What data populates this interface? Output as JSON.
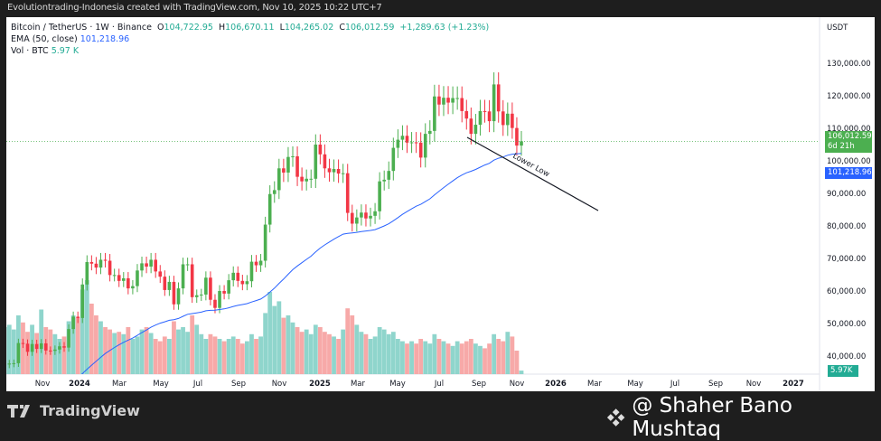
{
  "header": {
    "title": "Evolutiontrading-Indonesia created with TradingView.com, Nov 10, 2025 10:22 UTC+7"
  },
  "legend": {
    "symbol": "Bitcoin / TetherUS · 1W · Binance",
    "o_label": "O",
    "o": "104,722.95",
    "h_label": "H",
    "h": "106,670.11",
    "l_label": "L",
    "l": "104,265.02",
    "c_label": "C",
    "c": "106,012.59",
    "change": "+1,289.63 (+1.23%)",
    "ema_label": "EMA (50, close)",
    "ema": "101,218.96",
    "vol_label": "Vol · BTC",
    "vol": "5.97 K"
  },
  "price_axis": {
    "currency": "USDT",
    "labels": [
      "130,000.00",
      "120,000.00",
      "110,000.00",
      "100,000.00",
      "90,000.00",
      "80,000.00",
      "70,000.00",
      "60,000.00",
      "50,000.00",
      "40,000.00"
    ],
    "last_price": "106,012.59",
    "countdown": "6d 21h",
    "ema_tag": "101,218.96",
    "vol_tag": "5.97K"
  },
  "time_axis": {
    "labels": [
      "Nov",
      "2024",
      "Mar",
      "May",
      "Jul",
      "Sep",
      "Nov",
      "2025",
      "Mar",
      "May",
      "Jul",
      "Sep",
      "Nov",
      "2026",
      "Mar",
      "May",
      "Jul",
      "Sep",
      "Nov",
      "2027"
    ]
  },
  "annotation": {
    "text": "Lower Low"
  },
  "watermark": {
    "text": "@ Shaher Bano Mushtaq"
  },
  "logo": {
    "text": "TradingView"
  },
  "colors": {
    "up": "#4caf50",
    "down": "#f23645",
    "vol_up": "#8fd5cc",
    "vol_down": "#f7a9a8",
    "ema": "#2962ff"
  },
  "chart_data": {
    "type": "candlestick",
    "interval": "1W",
    "ylim": [
      37000,
      133000
    ],
    "closes": [
      27900,
      28300,
      30000,
      34500,
      34700,
      37000,
      37400,
      37700,
      37800,
      44000,
      43800,
      41300,
      43700,
      42200,
      43900,
      41700,
      41600,
      42000,
      43000,
      42600,
      48300,
      52100,
      51700,
      62000,
      68900,
      68400,
      67200,
      69600,
      69300,
      64900,
      64900,
      63100,
      63900,
      60800,
      61500,
      66300,
      68500,
      67500,
      69600,
      66000,
      64400,
      60300,
      62800,
      55900,
      60800,
      68200,
      68200,
      58100,
      58700,
      58900,
      64100,
      57300,
      54800,
      60000,
      59200,
      63300,
      65600,
      63100,
      62100,
      63000,
      69000,
      67900,
      69300,
      80400,
      89800,
      91000,
      97700,
      96400,
      101200,
      101400,
      95100,
      93700,
      94500,
      94500,
      105000,
      102000,
      97700,
      96500,
      97500,
      96100,
      96200,
      84000,
      80700,
      82600,
      84100,
      82300,
      83100,
      84500,
      93700,
      94200,
      96900,
      104000,
      106500,
      107700,
      105600,
      105700,
      105600,
      101000,
      108300,
      109200,
      119800,
      117300,
      119400,
      117900,
      119300,
      119300,
      115300,
      113000,
      108300,
      111100,
      115300,
      115200,
      112200,
      123500,
      115200,
      111000,
      114500,
      110100,
      104700,
      106000
    ],
    "volumes": [
      38,
      40,
      45,
      52,
      48,
      55,
      40,
      42,
      38,
      50,
      44,
      36,
      42,
      35,
      55,
      40,
      38,
      34,
      30,
      32,
      45,
      50,
      48,
      72,
      80,
      60,
      50,
      45,
      40,
      38,
      35,
      36,
      34,
      40,
      30,
      32,
      38,
      40,
      35,
      30,
      28,
      32,
      30,
      45,
      38,
      40,
      36,
      50,
      42,
      34,
      30,
      34,
      32,
      30,
      28,
      30,
      32,
      30,
      26,
      28,
      34,
      30,
      32,
      52,
      70,
      58,
      62,
      48,
      50,
      44,
      40,
      36,
      38,
      34,
      42,
      40,
      36,
      34,
      32,
      30,
      38,
      56,
      50,
      42,
      36,
      34,
      30,
      32,
      40,
      38,
      34,
      36,
      30,
      28,
      26,
      28,
      26,
      30,
      28,
      26,
      34,
      30,
      28,
      26,
      24,
      28,
      26,
      28,
      30,
      26,
      24,
      22,
      26,
      34,
      30,
      28,
      36,
      32,
      20,
      3
    ]
  }
}
